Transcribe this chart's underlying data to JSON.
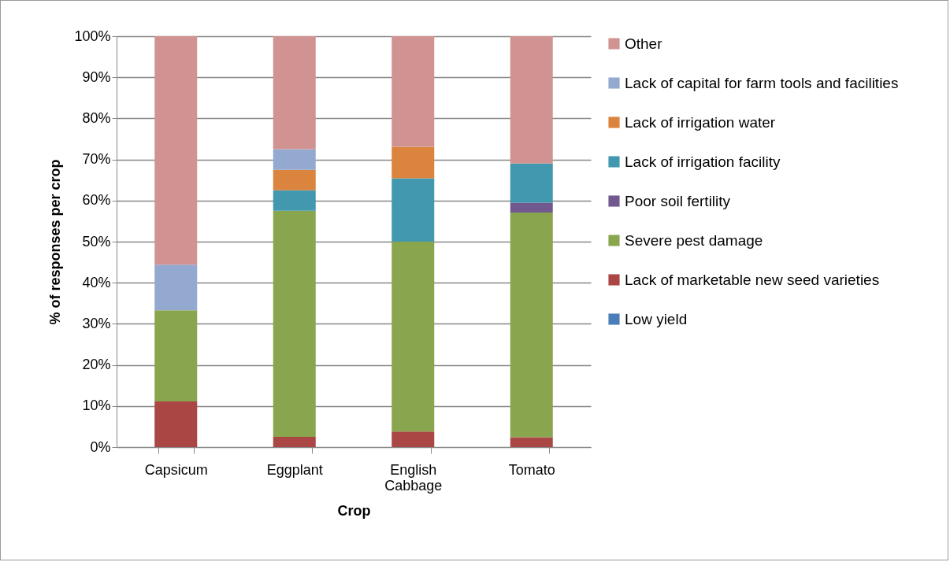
{
  "chart_data": {
    "type": "bar",
    "stacked": true,
    "xlabel": "Crop",
    "ylabel": "% of responses per crop",
    "categories": [
      "Capsicum",
      "Eggplant",
      "English Cabbage",
      "Tomato"
    ],
    "series": [
      {
        "name": "Low yield",
        "color": "#4a7ebb",
        "values": [
          0,
          0,
          0,
          0
        ]
      },
      {
        "name": "Lack of marketable new seed varieties",
        "color": "#aa4643",
        "values": [
          11.1,
          2.5,
          3.8,
          2.4
        ]
      },
      {
        "name": "Severe pest damage",
        "color": "#89a54e",
        "values": [
          22.2,
          55.0,
          46.2,
          54.7
        ]
      },
      {
        "name": "Poor soil fertility",
        "color": "#71588f",
        "values": [
          0,
          0,
          0,
          2.4
        ]
      },
      {
        "name": "Lack of irrigation facility",
        "color": "#4198af",
        "values": [
          0,
          5.0,
          15.4,
          9.5
        ]
      },
      {
        "name": "Lack of irrigation water",
        "color": "#db843d",
        "values": [
          0,
          5.0,
          7.7,
          0
        ]
      },
      {
        "name": "Lack of capital for farm tools and facilities",
        "color": "#93a9cf",
        "values": [
          11.1,
          5.0,
          0,
          0
        ]
      },
      {
        "name": "Other",
        "color": "#d19392",
        "values": [
          55.6,
          27.5,
          26.9,
          31.0
        ]
      }
    ],
    "ylim": [
      0,
      100
    ],
    "yticks": [
      {
        "value": 0,
        "label": "0%"
      },
      {
        "value": 10,
        "label": "10%"
      },
      {
        "value": 20,
        "label": "20%"
      },
      {
        "value": 30,
        "label": "30%"
      },
      {
        "value": 40,
        "label": "40%"
      },
      {
        "value": 50,
        "label": "50%"
      },
      {
        "value": 60,
        "label": "60%"
      },
      {
        "value": 70,
        "label": "70%"
      },
      {
        "value": 80,
        "label": "80%"
      },
      {
        "value": 90,
        "label": "90%"
      },
      {
        "value": 100,
        "label": "100%"
      }
    ],
    "grid": "y",
    "legend": "right"
  }
}
